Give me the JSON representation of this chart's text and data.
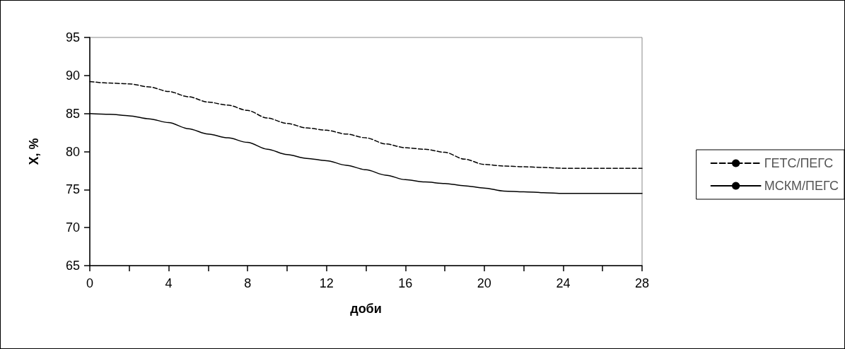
{
  "chart_data": {
    "type": "line",
    "xlabel": "доби",
    "ylabel": "Х, %",
    "x": [
      0,
      1,
      2,
      3,
      4,
      5,
      6,
      7,
      8,
      9,
      10,
      11,
      12,
      13,
      14,
      15,
      16,
      17,
      18,
      19,
      20,
      21,
      22,
      23,
      24,
      25,
      26,
      27,
      28
    ],
    "series": [
      {
        "name": "ГЕТС/ПЕГС",
        "color": "#000000",
        "line_style": "dashed",
        "values": [
          89.2,
          89.0,
          88.9,
          88.5,
          87.9,
          87.2,
          86.5,
          86.1,
          85.4,
          84.4,
          83.7,
          83.1,
          82.8,
          82.3,
          81.8,
          81.0,
          80.5,
          80.3,
          79.9,
          79.0,
          78.3,
          78.1,
          78.0,
          77.9,
          77.8,
          77.8,
          77.8,
          77.8,
          77.8
        ]
      },
      {
        "name": "МСКМ/ПЕГС",
        "color": "#000000",
        "line_style": "solid",
        "values": [
          85.0,
          84.9,
          84.7,
          84.3,
          83.8,
          83.0,
          82.3,
          81.8,
          81.2,
          80.3,
          79.6,
          79.1,
          78.8,
          78.2,
          77.6,
          76.9,
          76.3,
          76.0,
          75.8,
          75.5,
          75.2,
          74.8,
          74.7,
          74.6,
          74.5,
          74.5,
          74.5,
          74.5,
          74.5
        ]
      }
    ],
    "xlim": [
      0,
      28
    ],
    "xticks": [
      0,
      {
        "value": 2,
        "label": null
      },
      4,
      {
        "value": 6,
        "label": null
      },
      8,
      {
        "value": 10,
        "label": null
      },
      12,
      {
        "value": 14,
        "label": null
      },
      16,
      {
        "value": 18,
        "label": null
      },
      20,
      {
        "value": 22,
        "label": null
      },
      24,
      {
        "value": 26,
        "label": null
      },
      28
    ],
    "ylim": [
      65,
      95
    ],
    "yticks": [
      65,
      70,
      75,
      80,
      85,
      90,
      95
    ],
    "grid": false,
    "legend": "right",
    "marker": "none"
  }
}
